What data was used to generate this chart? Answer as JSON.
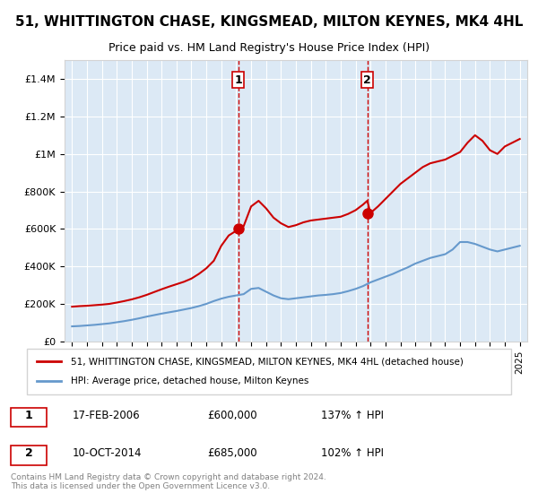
{
  "title": "51, WHITTINGTON CHASE, KINGSMEAD, MILTON KEYNES, MK4 4HL",
  "subtitle": "Price paid vs. HM Land Registry's House Price Index (HPI)",
  "background_color": "#dce9f5",
  "plot_background": "#dce9f5",
  "red_line_color": "#cc0000",
  "blue_line_color": "#6699cc",
  "vline_color": "#cc0000",
  "ylim": [
    0,
    1500000
  ],
  "yticks": [
    0,
    200000,
    400000,
    600000,
    800000,
    1000000,
    1200000,
    1400000
  ],
  "xlim_start": 1994.5,
  "xlim_end": 2025.5,
  "xticks": [
    1995,
    1996,
    1997,
    1998,
    1999,
    2000,
    2001,
    2002,
    2003,
    2004,
    2005,
    2006,
    2007,
    2008,
    2009,
    2010,
    2011,
    2012,
    2013,
    2014,
    2015,
    2016,
    2017,
    2018,
    2019,
    2020,
    2021,
    2022,
    2023,
    2024,
    2025
  ],
  "transaction1_x": 2006.13,
  "transaction1_y": 600000,
  "transaction1_label": "1",
  "transaction1_date": "17-FEB-2006",
  "transaction1_price": "£600,000",
  "transaction1_hpi": "137% ↑ HPI",
  "transaction2_x": 2014.78,
  "transaction2_y": 685000,
  "transaction2_label": "2",
  "transaction2_date": "10-OCT-2014",
  "transaction2_price": "£685,000",
  "transaction2_hpi": "102% ↑ HPI",
  "legend_red_label": "51, WHITTINGTON CHASE, KINGSMEAD, MILTON KEYNES, MK4 4HL (detached house)",
  "legend_blue_label": "HPI: Average price, detached house, Milton Keynes",
  "footer": "Contains HM Land Registry data © Crown copyright and database right 2024.\nThis data is licensed under the Open Government Licence v3.0.",
  "red_x": [
    1995,
    1995.5,
    1996,
    1996.5,
    1997,
    1997.5,
    1998,
    1998.5,
    1999,
    1999.5,
    2000,
    2000.5,
    2001,
    2001.5,
    2002,
    2002.5,
    2003,
    2003.5,
    2004,
    2004.5,
    2005,
    2005.5,
    2006,
    2006.13,
    2006.5,
    2007,
    2007.5,
    2008,
    2008.5,
    2009,
    2009.5,
    2010,
    2010.5,
    2011,
    2011.5,
    2012,
    2012.5,
    2013,
    2013.5,
    2014,
    2014.5,
    2014.78,
    2015,
    2015.5,
    2016,
    2016.5,
    2017,
    2017.5,
    2018,
    2018.5,
    2019,
    2019.5,
    2020,
    2020.5,
    2021,
    2021.5,
    2022,
    2022.5,
    2023,
    2023.5,
    2024,
    2024.5,
    2025
  ],
  "red_y": [
    185000,
    188000,
    190000,
    193000,
    196000,
    200000,
    207000,
    215000,
    224000,
    235000,
    248000,
    263000,
    278000,
    292000,
    305000,
    318000,
    335000,
    360000,
    390000,
    430000,
    510000,
    565000,
    590000,
    600000,
    615000,
    720000,
    750000,
    710000,
    660000,
    630000,
    610000,
    620000,
    635000,
    645000,
    650000,
    655000,
    660000,
    665000,
    680000,
    700000,
    730000,
    750000,
    685000,
    720000,
    760000,
    800000,
    840000,
    870000,
    900000,
    930000,
    950000,
    960000,
    970000,
    990000,
    1010000,
    1060000,
    1100000,
    1070000,
    1020000,
    1000000,
    1040000,
    1060000,
    1080000
  ],
  "blue_x": [
    1995,
    1995.5,
    1996,
    1996.5,
    1997,
    1997.5,
    1998,
    1998.5,
    1999,
    1999.5,
    2000,
    2000.5,
    2001,
    2001.5,
    2002,
    2002.5,
    2003,
    2003.5,
    2004,
    2004.5,
    2005,
    2005.5,
    2006,
    2006.5,
    2007,
    2007.5,
    2008,
    2008.5,
    2009,
    2009.5,
    2010,
    2010.5,
    2011,
    2011.5,
    2012,
    2012.5,
    2013,
    2013.5,
    2014,
    2014.5,
    2015,
    2015.5,
    2016,
    2016.5,
    2017,
    2017.5,
    2018,
    2018.5,
    2019,
    2019.5,
    2020,
    2020.5,
    2021,
    2021.5,
    2022,
    2022.5,
    2023,
    2023.5,
    2024,
    2024.5,
    2025
  ],
  "blue_y": [
    80000,
    82000,
    85000,
    88000,
    92000,
    96000,
    102000,
    108000,
    115000,
    123000,
    132000,
    140000,
    148000,
    155000,
    162000,
    170000,
    178000,
    188000,
    200000,
    215000,
    228000,
    238000,
    245000,
    252000,
    280000,
    285000,
    265000,
    245000,
    230000,
    225000,
    230000,
    235000,
    240000,
    245000,
    248000,
    252000,
    258000,
    268000,
    280000,
    295000,
    315000,
    330000,
    345000,
    360000,
    378000,
    395000,
    415000,
    430000,
    445000,
    455000,
    465000,
    490000,
    530000,
    530000,
    520000,
    505000,
    490000,
    480000,
    490000,
    500000,
    510000
  ]
}
